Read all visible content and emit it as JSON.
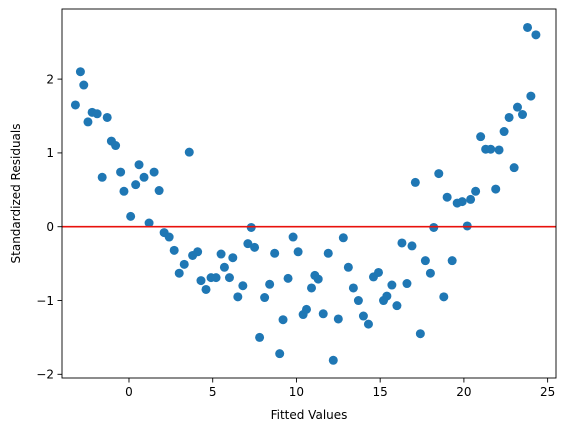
{
  "chart_data": {
    "type": "scatter",
    "title": "",
    "xlabel": "Fitted Values",
    "ylabel": "Standardized Residuals",
    "xlim": [
      -4.0,
      25.5
    ],
    "ylim": [
      -2.05,
      2.95
    ],
    "x_ticks": [
      0,
      5,
      10,
      15,
      20,
      25
    ],
    "x_tick_labels": [
      "0",
      "5",
      "10",
      "15",
      "20",
      "25"
    ],
    "y_ticks": [
      -2,
      -1,
      0,
      1,
      2
    ],
    "y_tick_labels": [
      "−2",
      "−1",
      "0",
      "1",
      "2"
    ],
    "grid": false,
    "legend": "none",
    "colors": {
      "points": "#1f77b4",
      "reference_line": "#e8120c",
      "axes": "#000000"
    },
    "reference_line": {
      "y": 0
    },
    "series": [
      {
        "x": [
          -3.2,
          -2.9,
          -2.7,
          -2.45,
          -2.2,
          -1.9,
          -1.6,
          -1.3,
          -1.05,
          -0.8,
          -0.5,
          -0.3,
          0.1,
          0.4,
          0.6,
          0.9,
          1.2,
          1.5,
          1.8,
          2.1,
          2.4,
          2.7,
          3.0,
          3.3,
          3.6,
          3.8,
          4.1,
          4.3,
          4.6,
          4.9,
          5.2,
          5.5,
          5.7,
          6.0,
          6.2,
          6.5,
          6.8,
          7.1,
          7.3,
          7.5,
          7.8,
          8.1,
          8.4,
          8.7,
          9.0,
          9.2,
          9.5,
          9.8,
          10.1,
          10.4,
          10.6,
          10.9,
          11.1,
          11.3,
          11.6,
          11.9,
          12.2,
          12.5,
          12.8,
          13.1,
          13.4,
          13.7,
          14.0,
          14.3,
          14.6,
          14.9,
          15.2,
          15.4,
          15.7,
          16.0,
          16.3,
          16.6,
          16.9,
          17.1,
          17.4,
          17.7,
          18.0,
          18.2,
          18.5,
          18.8,
          19.0,
          19.3,
          19.6,
          19.9,
          20.2,
          20.4,
          20.7,
          21.0,
          21.3,
          21.6,
          21.9,
          22.1,
          22.4,
          22.7,
          23.0,
          23.2,
          23.5,
          23.8,
          24.0,
          24.3
        ],
        "y": [
          1.65,
          2.1,
          1.92,
          1.42,
          1.55,
          1.53,
          0.67,
          1.48,
          1.16,
          1.1,
          0.74,
          0.48,
          0.14,
          0.57,
          0.84,
          0.67,
          0.05,
          0.74,
          0.49,
          -0.08,
          -0.14,
          -0.32,
          -0.63,
          -0.51,
          1.01,
          -0.39,
          -0.34,
          -0.73,
          -0.85,
          -0.69,
          -0.69,
          -0.37,
          -0.55,
          -0.69,
          -0.42,
          -0.95,
          -0.8,
          -0.23,
          -0.01,
          -0.28,
          -1.5,
          -0.96,
          -0.78,
          -0.36,
          -1.72,
          -1.26,
          -0.7,
          -0.14,
          -0.34,
          -1.19,
          -1.12,
          -0.83,
          -0.66,
          -0.71,
          -1.18,
          -0.36,
          -1.81,
          -1.25,
          -0.15,
          -0.55,
          -0.83,
          -1.0,
          -1.21,
          -1.32,
          -0.68,
          -0.62,
          -1.0,
          -0.94,
          -0.79,
          -1.07,
          -0.22,
          -0.77,
          -0.26,
          0.6,
          -1.45,
          -0.46,
          -0.63,
          -0.01,
          0.72,
          -0.95,
          0.4,
          -0.46,
          0.32,
          0.34,
          0.01,
          0.37,
          0.48,
          1.22,
          1.05,
          1.05,
          0.51,
          1.04,
          1.29,
          1.48,
          0.8,
          1.62,
          1.52,
          2.7,
          1.77,
          2.6
        ]
      }
    ]
  }
}
